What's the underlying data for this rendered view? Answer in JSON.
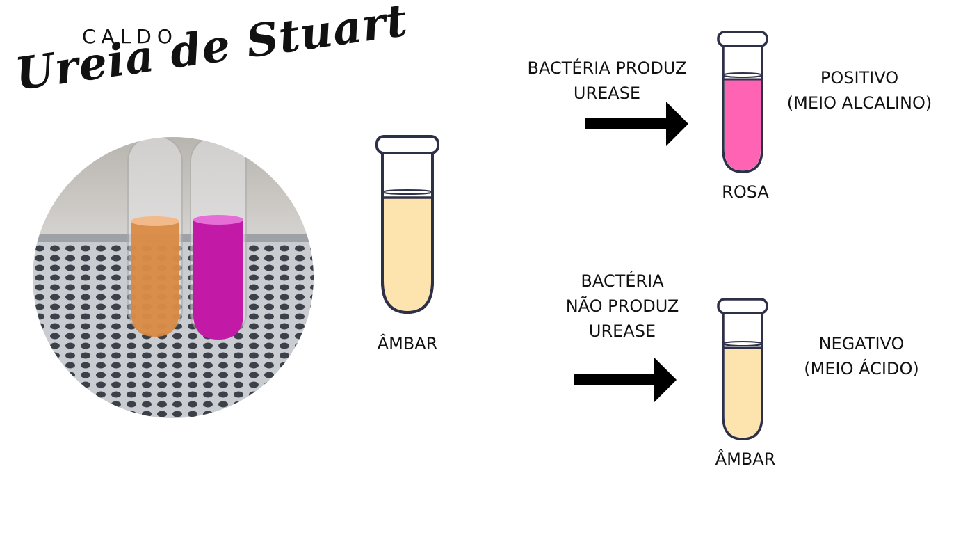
{
  "title": {
    "small": "CALDO",
    "script": "Ureia de Stuart"
  },
  "initial": {
    "label": "ÂMBAR",
    "color": "#fde3ad"
  },
  "positive": {
    "cause_lines": [
      "BACTÉRIA PRODUZ",
      "UREASE"
    ],
    "color_label": "ROSA",
    "result_lines": [
      "POSITIVO",
      "(MEIO ALCALINO)"
    ],
    "color": "#ff63b4"
  },
  "negative": {
    "cause_lines": [
      "BACTÉRIA",
      "NÃO PRODUZ",
      "UREASE"
    ],
    "color_label": "ÂMBAR",
    "result_lines": [
      "NEGATIVO",
      "(MEIO ÁCIDO)"
    ],
    "color": "#fde3ad"
  },
  "photo": {
    "left_tube_color": "#d9883f",
    "right_tube_color": "#c21aa6"
  },
  "colors": {
    "outline": "#2e3047",
    "arrow": "#000000"
  }
}
